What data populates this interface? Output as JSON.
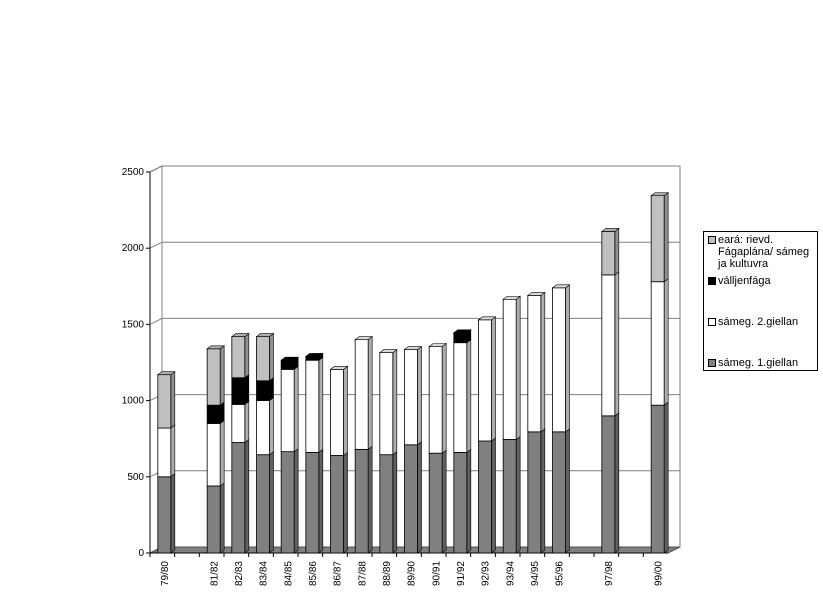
{
  "chart_data": {
    "type": "bar",
    "stacked": true,
    "three_d": true,
    "categories": [
      "79/80",
      "",
      "81/82",
      "82/83",
      "83/84",
      "84/85",
      "85/86",
      "86/87",
      "87/88",
      "88/89",
      "89/90",
      "90/91",
      "91/92",
      "92/93",
      "93/94",
      "94/95",
      "95/96",
      "",
      "97/98",
      "",
      "99/00"
    ],
    "series": [
      {
        "name": "sámeg. 1.giellan",
        "color": "#808080",
        "values": [
          500,
          null,
          440,
          725,
          645,
          665,
          660,
          640,
          680,
          645,
          710,
          655,
          660,
          735,
          745,
          795,
          795,
          null,
          900,
          null,
          970
        ]
      },
      {
        "name": "sámeg. 2.giellan",
        "color": "#ffffff",
        "values": [
          320,
          null,
          410,
          250,
          355,
          540,
          605,
          565,
          720,
          670,
          625,
          700,
          720,
          795,
          920,
          895,
          945,
          null,
          925,
          null,
          810
        ]
      },
      {
        "name": "válljenfága",
        "color": "#000000",
        "values": [
          0,
          null,
          120,
          175,
          130,
          60,
          25,
          0,
          0,
          0,
          0,
          0,
          65,
          0,
          0,
          0,
          0,
          null,
          0,
          null,
          0
        ]
      },
      {
        "name": "eará: rievd. Fágaplána/ sámeg ja kultuvra",
        "color": "#c0c0c0",
        "values": [
          350,
          null,
          370,
          270,
          290,
          0,
          0,
          0,
          0,
          0,
          0,
          0,
          0,
          0,
          0,
          0,
          0,
          null,
          285,
          null,
          565
        ]
      }
    ],
    "ylim": [
      0,
      2500
    ],
    "yticks": [
      "0",
      "500",
      "1000",
      "1500",
      "2000",
      "2500"
    ],
    "grid": true,
    "legend_position": "right",
    "legend_entries": [
      {
        "label": "eará: rievd. Fágaplána/ sámeg ja kultuvra",
        "color": "#c0c0c0"
      },
      {
        "label": "válljenfága",
        "color": "#000000"
      },
      {
        "label": "sámeg. 2.giellan",
        "color": "#ffffff"
      },
      {
        "label": "sámeg. 1.giellan",
        "color": "#808080"
      }
    ],
    "title": "",
    "xlabel": "",
    "ylabel": ""
  }
}
